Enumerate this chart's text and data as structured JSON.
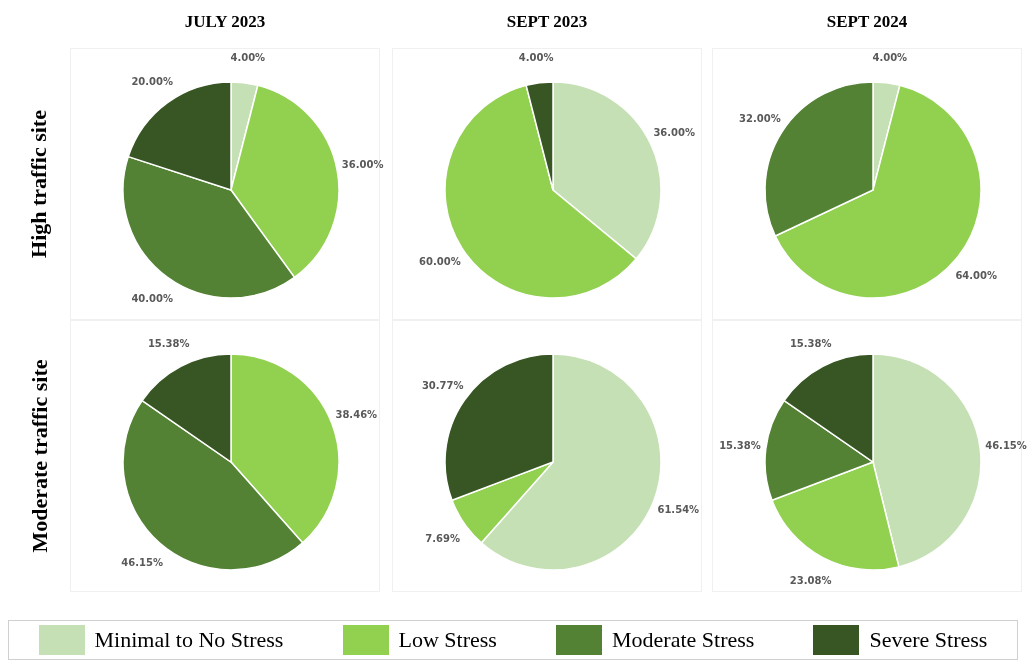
{
  "chart_data": [
    {
      "type": "pie",
      "title": "JULY 2023",
      "ylabel": "High traffic site",
      "legend": "bottom",
      "categories": [
        "Minimal to No Stress",
        "Low Stress",
        "Moderate Stress",
        "Severe Stress"
      ],
      "values": [
        4,
        36,
        40,
        20
      ],
      "value_labels": [
        "4.00%",
        "36.00%",
        "40.00%",
        "20.00%"
      ],
      "colors": [
        "#c5e0b4",
        "#92d050",
        "#548235",
        "#375623"
      ]
    },
    {
      "type": "pie",
      "title": "SEPT 2023",
      "categories": [
        null,
        null,
        null
      ],
      "values": [
        36,
        60,
        4
      ],
      "value_labels": [
        "36.00%",
        "60.00%",
        "4.00%"
      ],
      "colors": [
        "#c5e0b4",
        "#92d050",
        "#375623"
      ]
    },
    {
      "type": "pie",
      "title": "SEPT 2024",
      "categories": [
        null,
        null,
        null
      ],
      "values": [
        4,
        64,
        32
      ],
      "value_labels": [
        "4.00%",
        "64.00%",
        "32.00%"
      ],
      "colors": [
        "#c5e0b4",
        "#92d050",
        "#548235"
      ]
    },
    {
      "type": "pie",
      "ylabel": "Moderate traffic site",
      "categories": [
        null,
        null,
        null
      ],
      "values": [
        38.46,
        46.15,
        15.38
      ],
      "value_labels": [
        "38.46%",
        "46.15%",
        "15.38%"
      ],
      "colors": [
        "#92d050",
        "#548235",
        "#375623"
      ]
    },
    {
      "type": "pie",
      "categories": [
        null,
        null,
        null
      ],
      "values": [
        61.54,
        7.69,
        30.77
      ],
      "value_labels": [
        "61.54%",
        "7.69%",
        "30.77%"
      ],
      "colors": [
        "#c5e0b4",
        "#92d050",
        "#375623"
      ]
    },
    {
      "type": "pie",
      "categories": [
        null,
        null,
        null,
        null
      ],
      "values": [
        46.15,
        23.08,
        15.38,
        15.38
      ],
      "value_labels": [
        "46.15%",
        "23.08%",
        "15.38%",
        "15.38%"
      ],
      "colors": [
        "#c5e0b4",
        "#92d050",
        "#548235",
        "#375623"
      ]
    }
  ]
}
